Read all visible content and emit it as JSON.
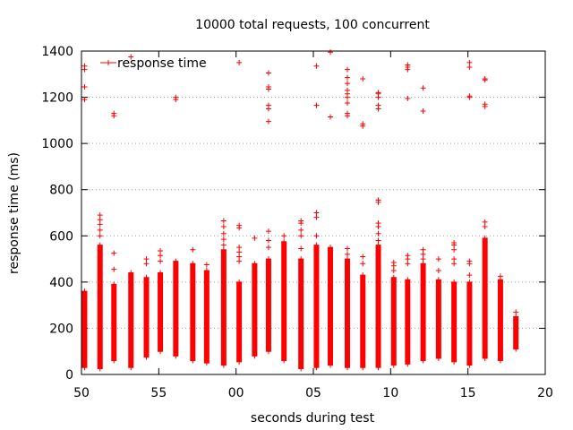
{
  "chart_data": {
    "type": "scatter",
    "title": "10000 total requests, 100 concurrent",
    "xlabel": "seconds during test",
    "ylabel": "response time (ms)",
    "xlim": [
      50,
      80
    ],
    "ylim": [
      0,
      1400
    ],
    "x_tick_values": [
      50,
      55,
      60,
      65,
      70,
      75,
      80
    ],
    "x_tick_labels": [
      "50",
      "55",
      "00",
      "05",
      "10",
      "15",
      "20"
    ],
    "y_tick_values": [
      0,
      200,
      400,
      600,
      800,
      1000,
      1200,
      1400
    ],
    "y_tick_labels": [
      "0",
      "200",
      "400",
      "600",
      "800",
      "1000",
      "1200",
      "1400"
    ],
    "grid": true,
    "grid_style": "dotted",
    "marker": "plus",
    "series_color": "#ff0000",
    "legend": {
      "entries": [
        "response time"
      ],
      "placement": "top-left"
    },
    "columns": [
      {
        "x": 50.2,
        "min": 30,
        "max": 360,
        "outliers": [
          1190,
          1245,
          1320,
          1335
        ]
      },
      {
        "x": 51.2,
        "min": 25,
        "max": 560,
        "outliers": [
          600,
          625,
          650,
          670,
          690
        ]
      },
      {
        "x": 52.1,
        "min": 60,
        "max": 390,
        "outliers": [
          455,
          525,
          1120,
          1130
        ]
      },
      {
        "x": 53.2,
        "min": 30,
        "max": 440,
        "outliers": [
          1375
        ]
      },
      {
        "x": 54.2,
        "min": 75,
        "max": 420,
        "outliers": [
          480,
          500
        ]
      },
      {
        "x": 55.1,
        "min": 100,
        "max": 440,
        "outliers": [
          490,
          515,
          535
        ]
      },
      {
        "x": 56.1,
        "min": 80,
        "max": 490,
        "outliers": [
          1190,
          1200
        ]
      },
      {
        "x": 57.2,
        "min": 60,
        "max": 480,
        "outliers": [
          540
        ]
      },
      {
        "x": 58.1,
        "min": 50,
        "max": 450,
        "outliers": [
          475
        ]
      },
      {
        "x": 59.2,
        "min": 40,
        "max": 540,
        "outliers": [
          560,
          585,
          610,
          640,
          665
        ]
      },
      {
        "x": 60.2,
        "min": 55,
        "max": 400,
        "outliers": [
          490,
          510,
          530,
          550,
          635,
          645,
          1350
        ]
      },
      {
        "x": 61.2,
        "min": 80,
        "max": 480,
        "outliers": [
          590
        ]
      },
      {
        "x": 62.1,
        "min": 100,
        "max": 500,
        "outliers": [
          550,
          580,
          620,
          1095,
          1150,
          1165,
          1235,
          1245,
          1305
        ]
      },
      {
        "x": 63.1,
        "min": 60,
        "max": 575,
        "outliers": [
          600
        ]
      },
      {
        "x": 64.2,
        "min": 25,
        "max": 500,
        "outliers": [
          545,
          600,
          625,
          655,
          665
        ]
      },
      {
        "x": 65.2,
        "min": 30,
        "max": 560,
        "outliers": [
          600,
          680,
          700,
          1165,
          1335
        ]
      },
      {
        "x": 66.1,
        "min": 40,
        "max": 550,
        "outliers": [
          1115,
          1395
        ]
      },
      {
        "x": 67.2,
        "min": 30,
        "max": 500,
        "outliers": [
          520,
          545,
          1120,
          1130,
          1175,
          1200,
          1215,
          1230,
          1260,
          1285,
          1320
        ]
      },
      {
        "x": 68.2,
        "min": 30,
        "max": 430,
        "outliers": [
          480,
          510,
          1075,
          1085,
          1280
        ]
      },
      {
        "x": 69.2,
        "min": 30,
        "max": 560,
        "outliers": [
          580,
          610,
          640,
          655,
          745,
          755,
          1150,
          1165,
          1200,
          1215,
          1220
        ]
      },
      {
        "x": 70.2,
        "min": 40,
        "max": 420,
        "outliers": [
          450,
          470,
          485
        ]
      },
      {
        "x": 71.1,
        "min": 45,
        "max": 410,
        "outliers": [
          480,
          500,
          515,
          1195,
          1320,
          1330,
          1340
        ]
      },
      {
        "x": 72.1,
        "min": 60,
        "max": 480,
        "outliers": [
          500,
          520,
          540,
          1140,
          1240
        ]
      },
      {
        "x": 73.1,
        "min": 70,
        "max": 410,
        "outliers": [
          450,
          500
        ]
      },
      {
        "x": 74.1,
        "min": 55,
        "max": 400,
        "outliers": [
          480,
          500,
          540,
          560,
          570
        ]
      },
      {
        "x": 75.1,
        "min": 40,
        "max": 400,
        "outliers": [
          430,
          480,
          490,
          1200,
          1205,
          1330,
          1350
        ]
      },
      {
        "x": 76.1,
        "min": 70,
        "max": 590,
        "outliers": [
          640,
          660,
          1160,
          1170,
          1275,
          1280
        ]
      },
      {
        "x": 77.1,
        "min": 60,
        "max": 410,
        "outliers": [
          425
        ]
      },
      {
        "x": 78.1,
        "min": 110,
        "max": 250,
        "outliers": [
          270
        ]
      }
    ]
  }
}
